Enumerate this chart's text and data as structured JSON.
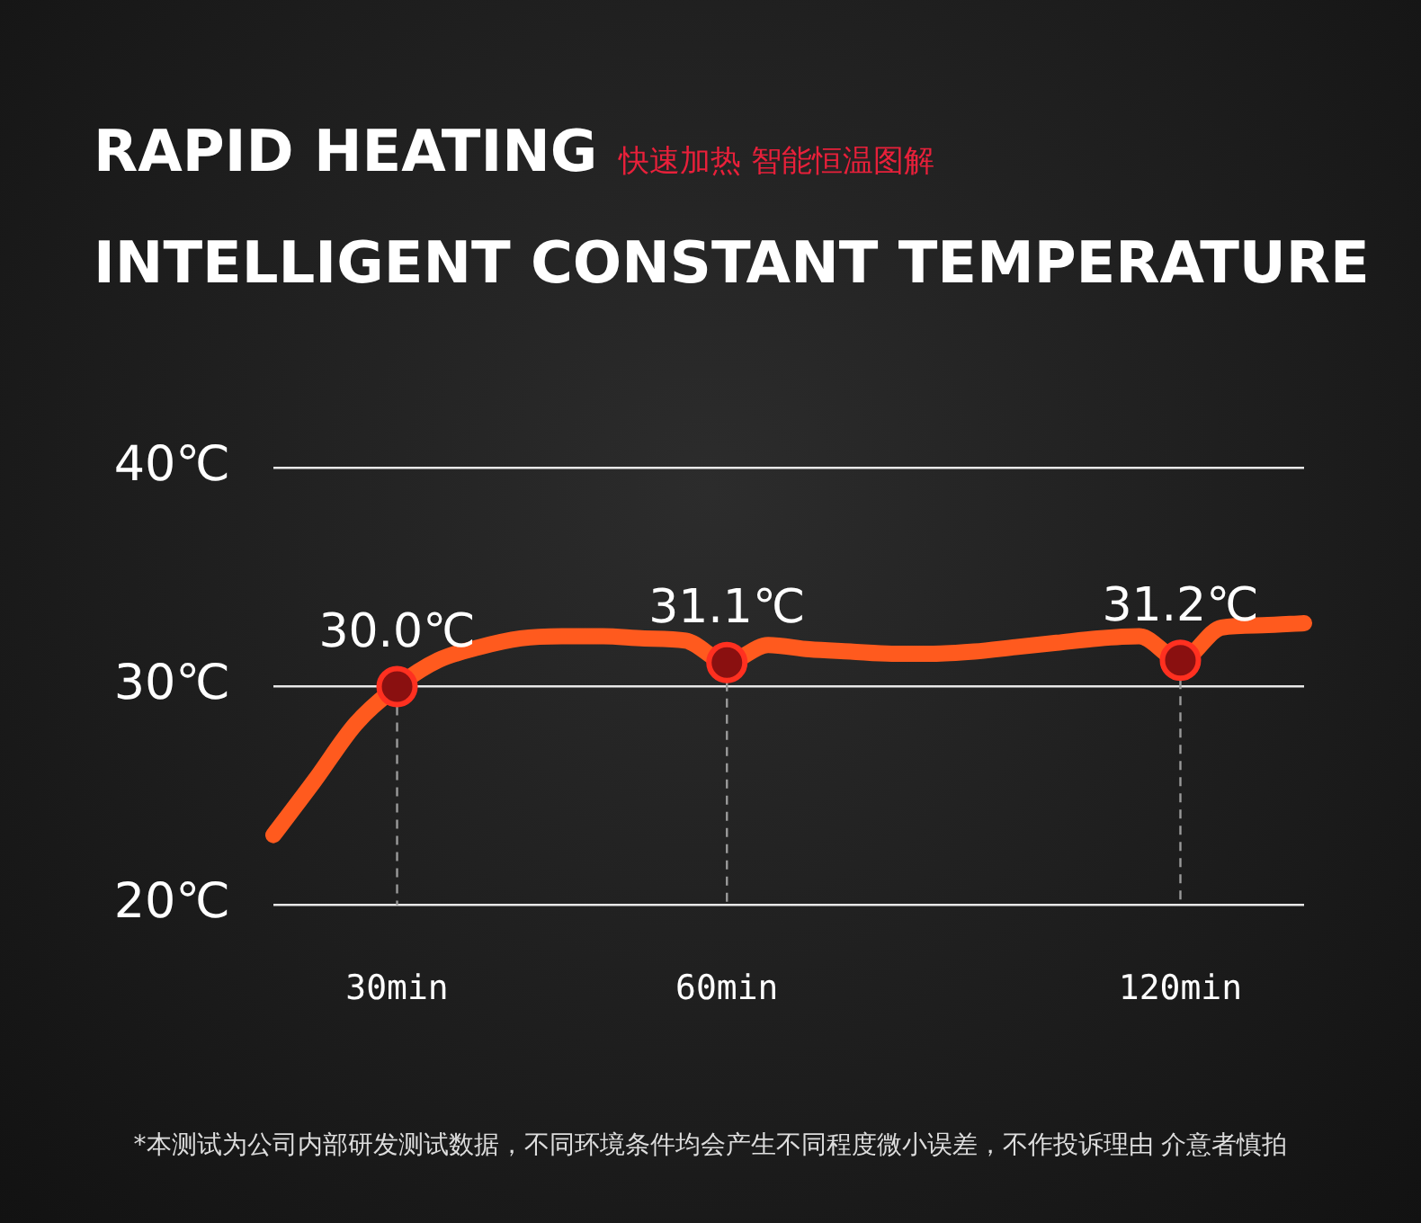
{
  "chart_data": {
    "type": "line",
    "title": "RAPID HEATING\nINTELLIGENT CONSTANT TEMPERATURE",
    "subtitle": "快速加热 智能恒温图解",
    "categories": [
      null,
      null,
      null,
      "30min",
      null,
      null,
      null,
      null,
      null,
      null,
      null,
      "60min",
      null,
      null,
      null,
      null,
      null,
      null,
      null,
      null,
      null,
      null,
      "120min",
      null,
      null,
      null
    ],
    "series": [
      {
        "color": "#ff5a1e",
        "values": [
          23.2,
          25.7,
          28.3,
          30.0,
          31.2,
          31.8,
          32.2,
          32.3,
          32.3,
          32.2,
          32.1,
          31.1,
          31.9,
          31.7,
          31.6,
          31.5,
          31.5,
          31.6,
          31.8,
          32.0,
          32.2,
          32.3,
          31.2,
          32.7,
          32.8,
          32.9
        ],
        "value_labels": [
          null,
          null,
          null,
          "30.0℃",
          null,
          null,
          null,
          null,
          null,
          null,
          null,
          "31.1℃",
          null,
          null,
          null,
          null,
          null,
          null,
          null,
          null,
          null,
          null,
          "31.2℃",
          null,
          null,
          null
        ]
      }
    ],
    "ylim": [
      20,
      40
    ],
    "yticks": [
      {
        "value": 20,
        "label": "20℃"
      },
      {
        "value": 30,
        "label": "30℃"
      },
      {
        "value": 40,
        "label": "40℃"
      }
    ],
    "grid": "y",
    "line_style": "solid",
    "annotations": [
      "*本测试为公司内部研发测试数据，不同环境条件均会产生不同程度微小误差，不作投诉理由 介意者慎拍"
    ]
  }
}
